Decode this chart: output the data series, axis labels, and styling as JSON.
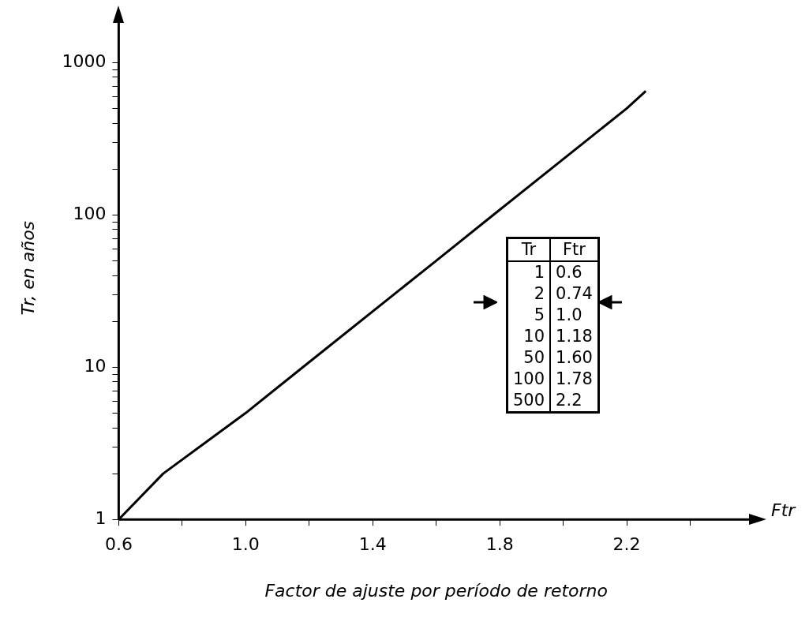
{
  "chart_data": {
    "type": "line",
    "xlabel": "Factor de ajuste por período de retorno",
    "ylabel": "Tr, en años",
    "log": "y",
    "grid": false,
    "marker": "none",
    "line_style": "solid",
    "legend": false,
    "xlim": [
      0.6,
      2.6
    ],
    "xticks": [
      0.6,
      {
        "value": 0.8,
        "label": null
      },
      {
        "value": 1.0,
        "label": "1.0"
      },
      {
        "value": 1.2,
        "label": null
      },
      1.4,
      {
        "value": 1.6,
        "label": null
      },
      1.8,
      {
        "value": 2.0,
        "label": null
      },
      2.2,
      {
        "value": 2.4,
        "label": null
      }
    ],
    "ylim": [
      1,
      2000
    ],
    "yticks": [
      1,
      {
        "value": 2,
        "label": null
      },
      {
        "value": 3,
        "label": null
      },
      {
        "value": 4,
        "label": null
      },
      {
        "value": 5,
        "label": null
      },
      {
        "value": 6,
        "label": null
      },
      {
        "value": 7,
        "label": null
      },
      {
        "value": 8,
        "label": null
      },
      {
        "value": 9,
        "label": null
      },
      10,
      {
        "value": 20,
        "label": null
      },
      {
        "value": 30,
        "label": null
      },
      {
        "value": 40,
        "label": null
      },
      {
        "value": 50,
        "label": null
      },
      {
        "value": 60,
        "label": null
      },
      {
        "value": 70,
        "label": null
      },
      {
        "value": 80,
        "label": null
      },
      {
        "value": 90,
        "label": null
      },
      100,
      {
        "value": 200,
        "label": null
      },
      {
        "value": 300,
        "label": null
      },
      {
        "value": 400,
        "label": null
      },
      {
        "value": 500,
        "label": null
      },
      {
        "value": 600,
        "label": null
      },
      {
        "value": 700,
        "label": null
      },
      {
        "value": 800,
        "label": null
      },
      {
        "value": 900,
        "label": null
      },
      1000
    ],
    "series": [
      {
        "color": "#000000",
        "x": [
          0.6,
          0.74,
          1.0,
          1.18,
          1.6,
          1.78,
          2.2,
          2.26
        ],
        "values": [
          1,
          2,
          5,
          10,
          50,
          100,
          500,
          650
        ]
      }
    ],
    "annotations": [
      "Ftr",
      "Tr",
      "Ftr",
      "1",
      "0.6",
      "2",
      "0.74",
      "5",
      "1.0",
      "10",
      "1.18",
      "50",
      "1.60",
      "100",
      "1.78",
      "500",
      "2.2"
    ]
  }
}
